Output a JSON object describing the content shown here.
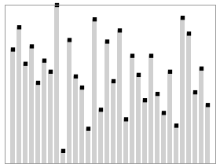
{
  "chart_data": {
    "type": "bar",
    "categories": [
      null,
      null,
      null,
      null,
      null,
      null,
      null,
      null,
      null,
      null,
      null,
      null,
      null,
      null,
      null,
      null,
      null,
      null,
      null,
      null,
      null,
      null,
      null,
      null,
      null,
      null,
      null,
      null,
      null,
      null,
      null,
      null
    ],
    "values": [
      0.72,
      0.86,
      0.63,
      0.74,
      0.51,
      0.65,
      0.58,
      1.0,
      0.08,
      0.78,
      0.55,
      0.48,
      0.22,
      0.91,
      0.34,
      0.77,
      0.52,
      0.84,
      0.28,
      0.68,
      0.56,
      0.4,
      0.68,
      0.44,
      0.32,
      0.58,
      0.24,
      0.92,
      0.82,
      0.45,
      0.6,
      0.37
    ],
    "color": "#d0d0d0",
    "marker": "square",
    "ylim": [
      0,
      1
    ],
    "tick_labels": false
  }
}
